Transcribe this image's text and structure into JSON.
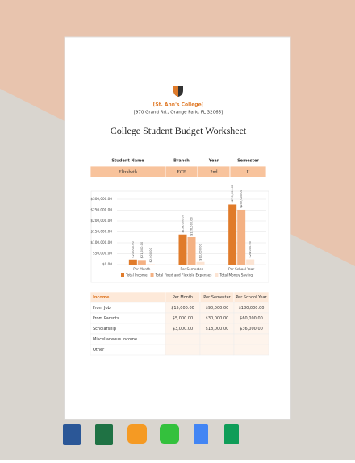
{
  "college": {
    "name": "[St. Ann's College]",
    "address": "[970 Grand Rd., Orange Park, FL 32065]"
  },
  "title": "College Student Budget Worksheet",
  "student_table": {
    "headers": [
      "Student Name",
      "Branch",
      "Year",
      "Semester"
    ],
    "row": [
      "Elizabeth",
      "ECE",
      "2nd",
      "II"
    ]
  },
  "chart_data": {
    "type": "bar",
    "categories": [
      "Per Month",
      "Per Semester",
      "Per School Year"
    ],
    "series": [
      {
        "name": "Total Income",
        "color": "#e07b2a",
        "values": [
          23000,
          138000,
          276000
        ],
        "value_labels": [
          "$23,000.00",
          "$138,000.00",
          "$276,000.00"
        ]
      },
      {
        "name": "Total Fixed and Flexible Expenses",
        "color": "#f4b183",
        "values": [
          21000,
          126000,
          252000
        ],
        "value_labels": [
          "$21,000.00",
          "$126,000.00",
          "$252,000.00"
        ]
      },
      {
        "name": "Total Money Saving",
        "color": "#fce4d3",
        "values": [
          2000,
          12000,
          24000
        ],
        "value_labels": [
          "$2,000.00",
          "$12,000.00",
          "$24,000.00"
        ]
      }
    ],
    "ylim": [
      0,
      300000
    ],
    "yticks": [
      {
        "value": 0,
        "label": "$0.00"
      },
      {
        "value": 50000,
        "label": "$50,000.00"
      },
      {
        "value": 100000,
        "label": "$100,000.00"
      },
      {
        "value": 150000,
        "label": "$150,000.00"
      },
      {
        "value": 200000,
        "label": "$200,000.00"
      },
      {
        "value": 250000,
        "label": "$250,000.00"
      },
      {
        "value": 300000,
        "label": "$300,000.00"
      }
    ],
    "grid": true,
    "legend": "bottom"
  },
  "income_table": {
    "headers": [
      "Income",
      "Per Month",
      "Per Semester",
      "Per School Year"
    ],
    "rows": [
      [
        "From Job",
        "$15,000.00",
        "$90,000.00",
        "$180,000.00"
      ],
      [
        "From Parents",
        "$5,000.00",
        "$30,000.00",
        "$60,000.00"
      ],
      [
        "Scholarship",
        "$3,000.00",
        "$18,000.00",
        "$36,000.00"
      ],
      [
        "Miscellaneous Income"
      ],
      [
        "Other"
      ]
    ]
  }
}
